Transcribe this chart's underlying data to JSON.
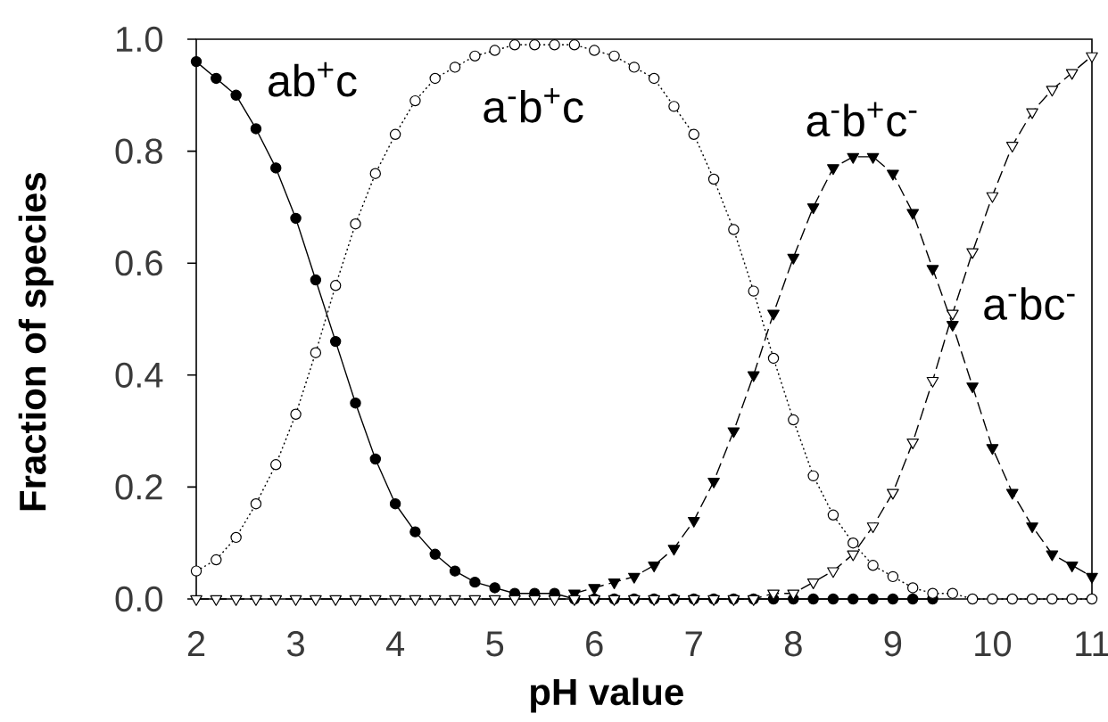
{
  "chart_data": {
    "type": "line",
    "xlabel": "pH value",
    "ylabel": "Fraction of species",
    "x": [
      2.0,
      2.2,
      2.4,
      2.6,
      2.8,
      3.0,
      3.2,
      3.4,
      3.6,
      3.8,
      4.0,
      4.2,
      4.4,
      4.6,
      4.8,
      5.0,
      5.2,
      5.4,
      5.6,
      5.8,
      6.0,
      6.2,
      6.4,
      6.6,
      6.8,
      7.0,
      7.2,
      7.4,
      7.6,
      7.8,
      8.0,
      8.2,
      8.4,
      8.6,
      8.8,
      9.0,
      9.2,
      9.4,
      9.6,
      9.8,
      10.0,
      10.2,
      10.4,
      10.6,
      10.8,
      11.0
    ],
    "xlim": [
      2,
      11
    ],
    "xticks": [
      2,
      3,
      4,
      5,
      6,
      7,
      8,
      9,
      10,
      11
    ],
    "ylim": [
      0,
      1
    ],
    "yticks": [
      {
        "value": 0,
        "label": "0.0"
      },
      0.2,
      0.4,
      0.6,
      0.8,
      {
        "value": 1,
        "label": "1.0"
      }
    ],
    "grid": false,
    "legend": false,
    "series": [
      {
        "name": "ab$^{+}$c",
        "color": "#000000",
        "marker": "circle",
        "line_style": "solid",
        "values": [
          0.96,
          0.93,
          0.9,
          0.84,
          0.77,
          0.68,
          0.57,
          0.46,
          0.35,
          0.25,
          0.17,
          0.12,
          0.08,
          0.05,
          0.03,
          0.02,
          0.01,
          0.01,
          0.01,
          0.0,
          0.0,
          0.0,
          0.0,
          0.0,
          0.0,
          0.0,
          0.0,
          0.0,
          0.0,
          0.0,
          0.0,
          0.0,
          0.0,
          0.0,
          0.0,
          0.0,
          0.0,
          0.0,
          null,
          null,
          null,
          null,
          null,
          null,
          null,
          null
        ]
      },
      {
        "name": "a$^{-}$b$^{+}$c",
        "color": "#000000",
        "marker": "circle",
        "line_style": "dotted",
        "values": [
          0.05,
          0.07,
          0.11,
          0.17,
          0.24,
          0.33,
          0.44,
          0.56,
          0.67,
          0.76,
          0.83,
          0.89,
          0.93,
          0.95,
          0.97,
          0.98,
          0.99,
          0.99,
          0.99,
          0.99,
          0.98,
          0.97,
          0.95,
          0.93,
          0.88,
          0.83,
          0.75,
          0.66,
          0.55,
          0.43,
          0.32,
          0.22,
          0.15,
          0.1,
          0.06,
          0.04,
          0.02,
          0.01,
          0.01,
          0.0,
          0.0,
          0.0,
          0.0,
          0.0,
          0.0,
          0.0
        ]
      },
      {
        "name": "a$^{-}$b$^{+}$c$^{-}$",
        "color": "#000000",
        "marker": "triangle",
        "line_style": "dashed",
        "values": [
          null,
          null,
          null,
          null,
          null,
          null,
          null,
          null,
          null,
          null,
          null,
          null,
          null,
          null,
          null,
          null,
          null,
          null,
          null,
          0.01,
          0.02,
          0.03,
          0.04,
          0.06,
          0.09,
          0.14,
          0.21,
          0.3,
          0.4,
          0.51,
          0.61,
          0.7,
          0.77,
          0.79,
          0.79,
          0.76,
          0.69,
          0.59,
          0.49,
          0.38,
          0.27,
          0.19,
          0.13,
          0.08,
          0.06,
          0.04
        ]
      },
      {
        "name": "a$^{-}$bc$^{-}$",
        "color": "#000000",
        "marker": "triangle",
        "line_style": "dashed",
        "values": [
          0.0,
          0.0,
          0.0,
          0.0,
          0.0,
          0.0,
          0.0,
          0.0,
          0.0,
          0.0,
          0.0,
          0.0,
          0.0,
          0.0,
          0.0,
          0.0,
          0.0,
          0.0,
          0.0,
          0.0,
          0.0,
          0.0,
          0.0,
          0.0,
          0.0,
          0.0,
          0.0,
          0.0,
          0.0,
          0.01,
          0.01,
          0.03,
          0.05,
          0.08,
          0.13,
          0.19,
          0.28,
          0.39,
          0.51,
          0.62,
          0.72,
          0.81,
          0.87,
          0.91,
          0.94,
          0.97
        ]
      }
    ]
  }
}
